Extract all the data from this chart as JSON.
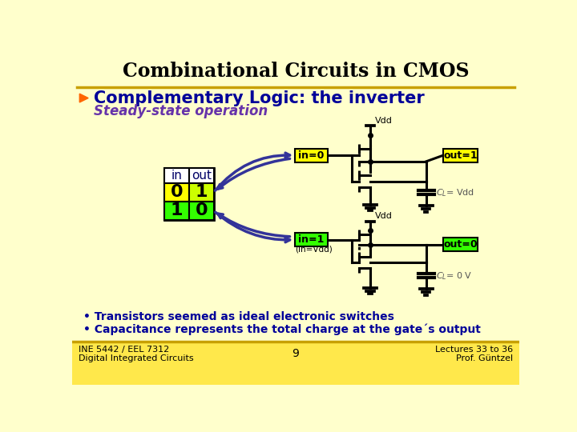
{
  "title": "Combinational Circuits in CMOS",
  "subtitle": "Complementary Logic: the inverter",
  "subtitle2": "Steady-state operation",
  "bg_color": "#FFFFCC",
  "footer_bg": "#FFE84B",
  "footer_left1": "INE 5442 / EEL 7312",
  "footer_left2": "Digital Integrated Circuits",
  "footer_center": "9",
  "footer_right1": "Lectures 33 to 36",
  "footer_right2": "Prof. Güntzel",
  "bullet1": "Transistors seemed as ideal electronic switches",
  "bullet2": "Capacitance represents the total charge at the gate´s output",
  "table_headers": [
    "in",
    "out"
  ],
  "table_row1": [
    "0",
    "1"
  ],
  "table_row2": [
    "1",
    "0"
  ],
  "label_in0": "in=0",
  "label_out1": "out=1",
  "label_in1": "in=1",
  "label_in_vdd": "(in=Vdd)",
  "label_out0": "out=0",
  "label_Vdd_top": "Vdd",
  "label_Vdd_mid": "Vdd",
  "CL_vdd_text": "C",
  "CL_0v_text": "C",
  "arrow_color": "#333399",
  "circuit_lw": 2.2,
  "title_fontsize": 17,
  "subtitle_fontsize": 15,
  "subtitle2_fontsize": 12
}
